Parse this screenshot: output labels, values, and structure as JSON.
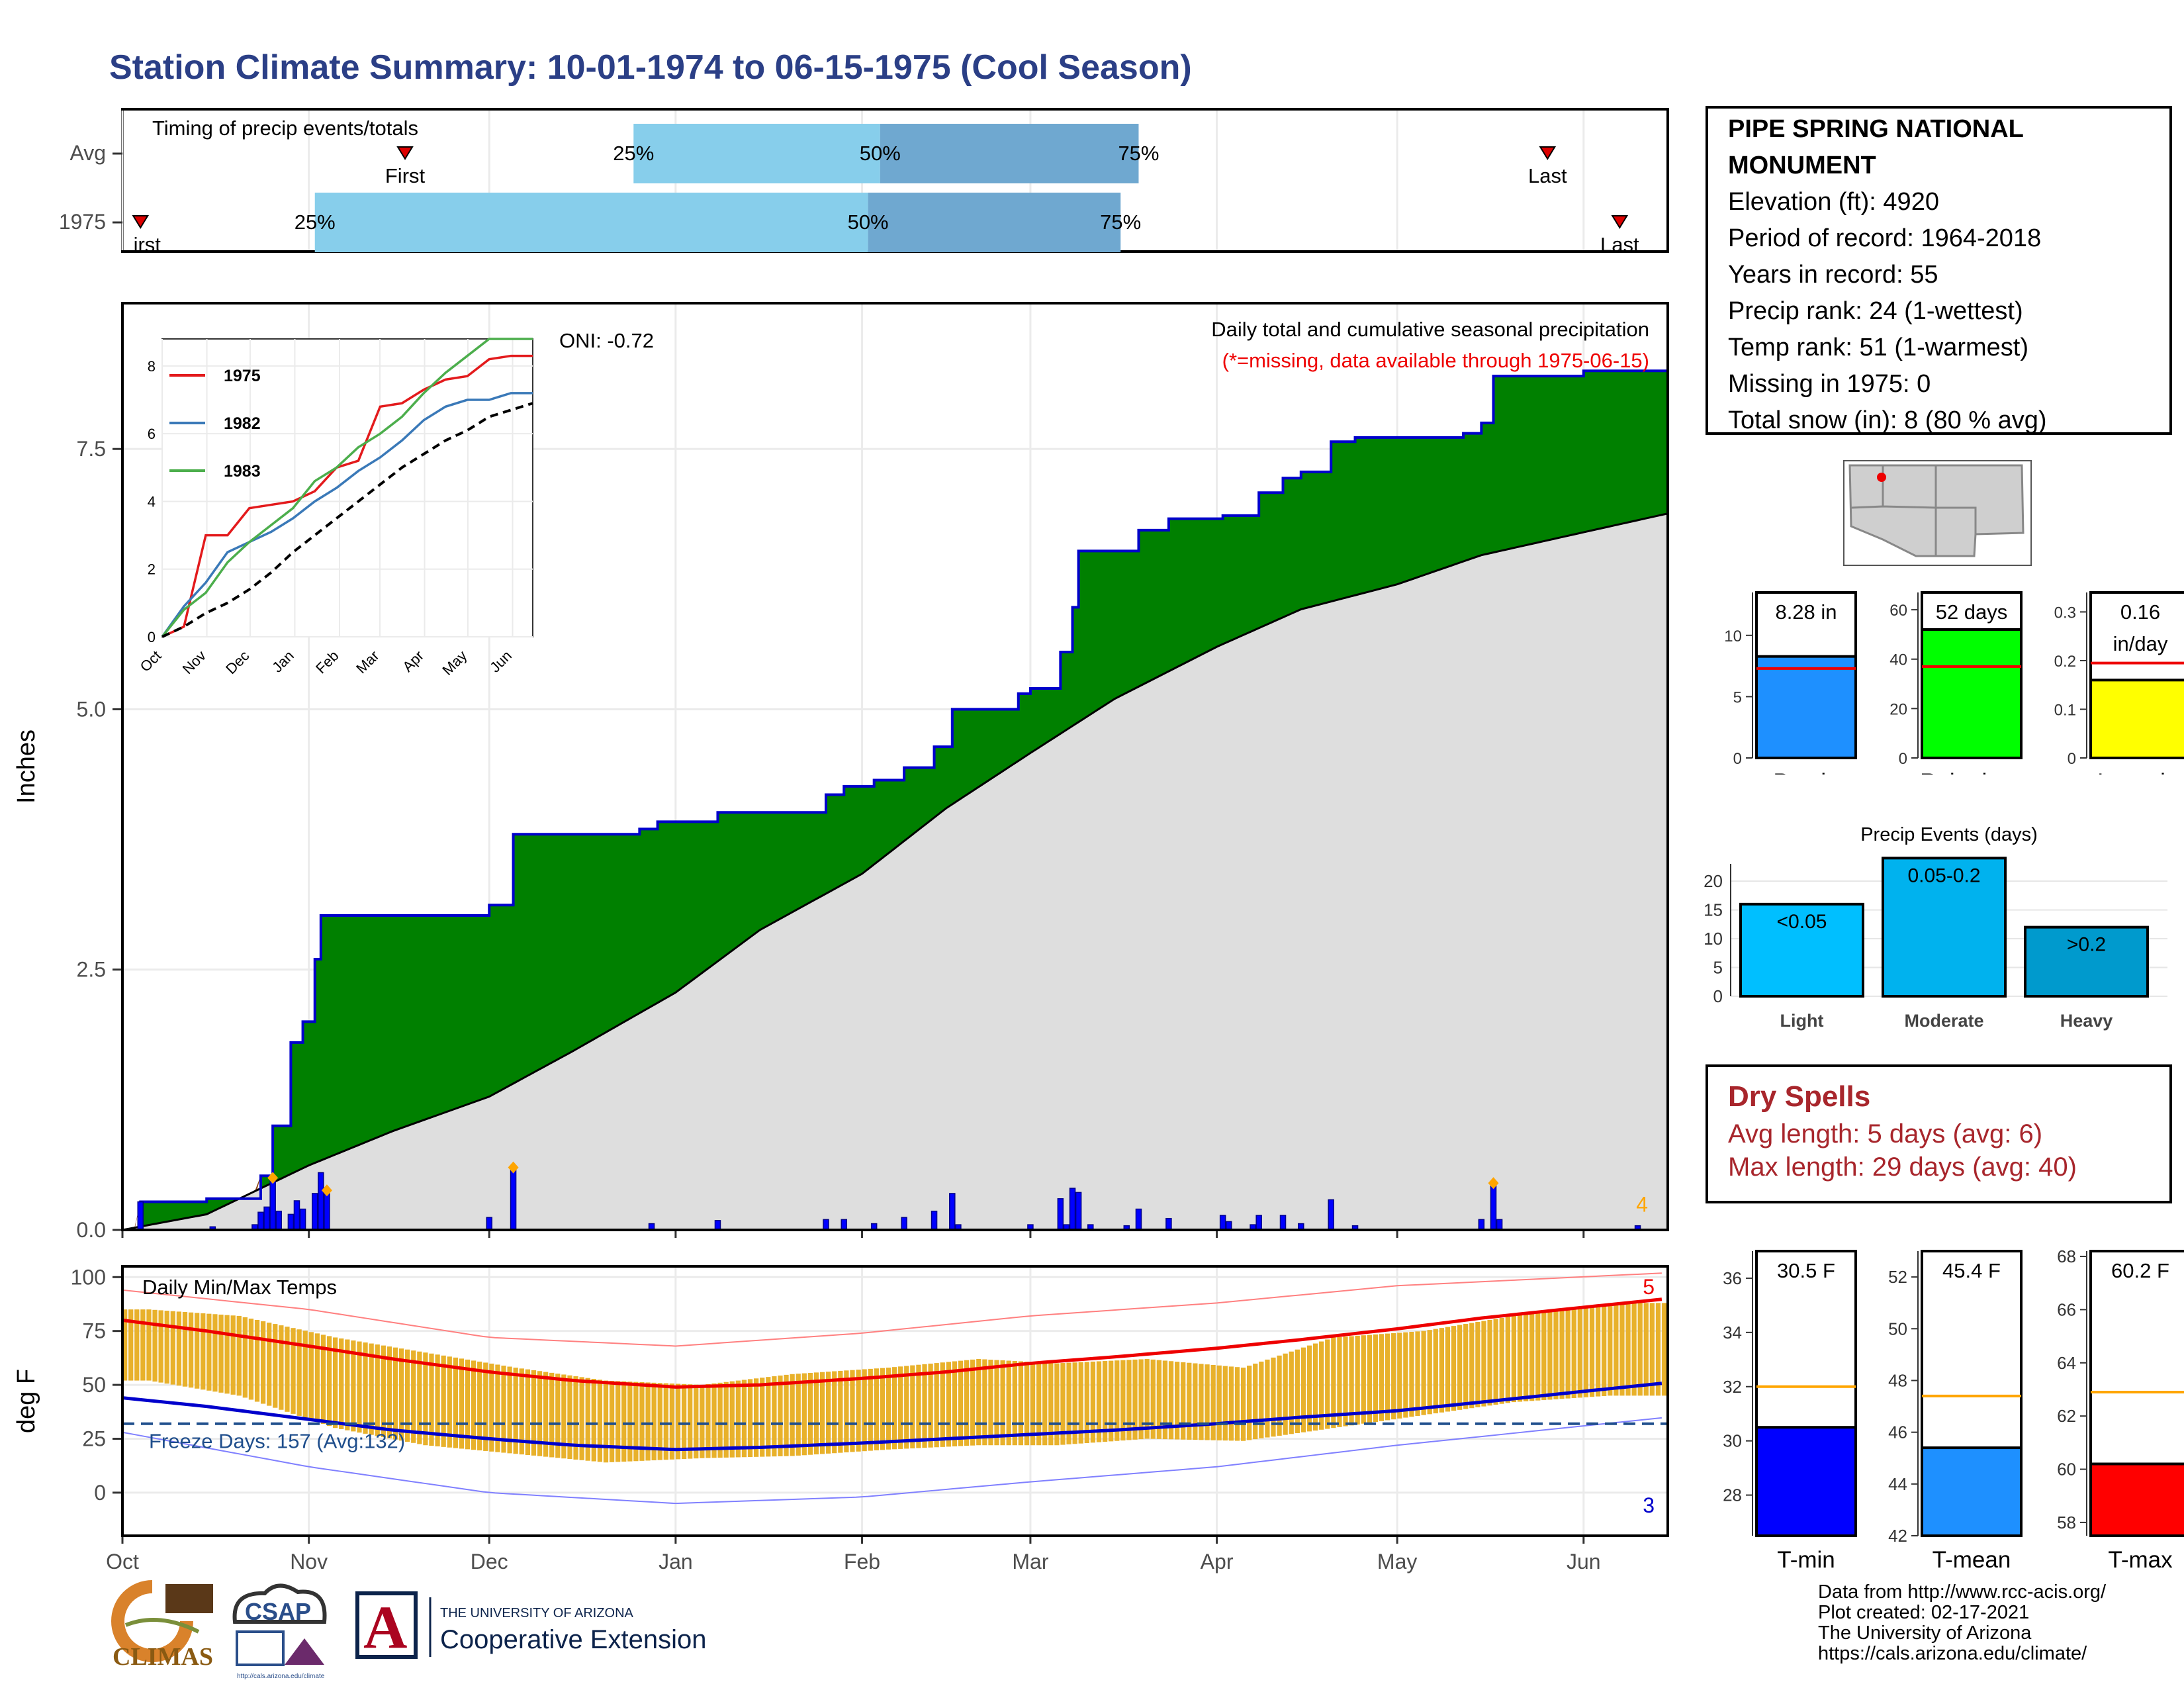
{
  "title": "Station Climate Summary: 10-01-1974 to 06-15-1975 (Cool Season)",
  "timing": {
    "title": "Timing of precip events/totals",
    "rows": [
      {
        "label": "Avg",
        "first_label": "First",
        "last_label": "Last",
        "first": "Nov 17",
        "last": "May 26",
        "p25": "Dec 25",
        "p50": "Feb 4",
        "p75": "Mar 19",
        "p25_label": "25%",
        "p50_label": "50%",
        "p75_label": "75%"
      },
      {
        "label": "1975",
        "first_label": "irst",
        "last_label": "Last",
        "first": "Oct 4",
        "last": "Jun 7",
        "p25": "Nov 2",
        "p50": "Feb 2",
        "p75": "Mar 16",
        "p25_label": "25%",
        "p50_label": "50%",
        "p75_label": "75%"
      }
    ],
    "colors": {
      "first_half": "#87ceeb",
      "second_half": "#6fa8d0",
      "marker": "#dd0000"
    }
  },
  "station": {
    "name_line1": "PIPE SPRING NATIONAL",
    "name_line2": "MONUMENT",
    "elevation": "Elevation (ft): 4920",
    "period": "Period of record: 1964-2018",
    "years": "Years in record: 55",
    "precip_rank": "Precip rank: 24 (1-wettest)",
    "temp_rank": "Temp rank: 51 (1-warmest)",
    "missing": "Missing in 1975: 0",
    "snow": "Total snow (in): 8 (80 % avg)"
  },
  "chart_data": [
    {
      "type": "area",
      "name": "cumulative_precip",
      "title": "Daily total and cumulative seasonal precipitation",
      "subtitle": "(*=missing, data available through 1975-06-15)",
      "ylabel": "Inches",
      "ylim": [
        0,
        8.9
      ],
      "yticks": [
        0.0,
        2.5,
        5.0,
        7.5
      ],
      "ytick_labels": [
        "0.0",
        "2.5",
        "5.0",
        "7.5"
      ],
      "oni": "ONI: -0.72",
      "corner_count": "4",
      "colors": {
        "observed_line": "#0000cc",
        "above_avg_fill": "#008000",
        "below_avg_fill": "#8b4513",
        "avg_fill": "#dedede"
      },
      "cumulative_1975": [
        [
          "1974-10-01",
          0.0
        ],
        [
          "1974-10-04",
          0.27
        ],
        [
          "1974-10-15",
          0.3
        ],
        [
          "1974-10-24",
          0.52
        ],
        [
          "1974-10-26",
          1.0
        ],
        [
          "1974-10-29",
          1.8
        ],
        [
          "1974-10-31",
          2.0
        ],
        [
          "1974-11-02",
          2.6
        ],
        [
          "1974-11-03",
          3.02
        ],
        [
          "1974-11-30",
          3.02
        ],
        [
          "1974-12-01",
          3.12
        ],
        [
          "1974-12-05",
          3.8
        ],
        [
          "1974-12-26",
          3.85
        ],
        [
          "1974-12-29",
          3.92
        ],
        [
          "1975-01-07",
          3.92
        ],
        [
          "1975-01-08",
          4.01
        ],
        [
          "1975-01-24",
          4.01
        ],
        [
          "1975-01-26",
          4.18
        ],
        [
          "1975-01-29",
          4.26
        ],
        [
          "1975-02-03",
          4.32
        ],
        [
          "1975-02-08",
          4.44
        ],
        [
          "1975-02-13",
          4.64
        ],
        [
          "1975-02-16",
          5.0
        ],
        [
          "1975-02-25",
          5.0
        ],
        [
          "1975-02-27",
          5.15
        ],
        [
          "1975-03-01",
          5.2
        ],
        [
          "1975-03-06",
          5.55
        ],
        [
          "1975-03-08",
          5.98
        ],
        [
          "1975-03-09",
          6.52
        ],
        [
          "1975-03-17",
          6.52
        ],
        [
          "1975-03-19",
          6.72
        ],
        [
          "1975-03-24",
          6.83
        ],
        [
          "1975-03-31",
          6.83
        ],
        [
          "1975-04-02",
          6.86
        ],
        [
          "1975-04-08",
          7.08
        ],
        [
          "1975-04-12",
          7.22
        ],
        [
          "1975-04-15",
          7.28
        ],
        [
          "1975-04-20",
          7.57
        ],
        [
          "1975-04-24",
          7.61
        ],
        [
          "1975-05-12",
          7.65
        ],
        [
          "1975-05-15",
          7.75
        ],
        [
          "1975-05-17",
          8.2
        ],
        [
          "1975-06-01",
          8.25
        ],
        [
          "1975-06-15",
          8.28
        ]
      ],
      "cumulative_avg": [
        [
          "1974-10-01",
          0.0
        ],
        [
          "1974-10-15",
          0.15
        ],
        [
          "1974-11-01",
          0.62
        ],
        [
          "1974-11-15",
          0.95
        ],
        [
          "1974-12-01",
          1.28
        ],
        [
          "1974-12-15",
          1.72
        ],
        [
          "1975-01-01",
          2.28
        ],
        [
          "1975-01-15",
          2.88
        ],
        [
          "1975-02-01",
          3.42
        ],
        [
          "1975-02-15",
          4.05
        ],
        [
          "1975-03-01",
          4.58
        ],
        [
          "1975-03-15",
          5.1
        ],
        [
          "1975-04-01",
          5.6
        ],
        [
          "1975-04-15",
          5.96
        ],
        [
          "1975-05-01",
          6.2
        ],
        [
          "1975-05-15",
          6.48
        ],
        [
          "1975-06-01",
          6.7
        ],
        [
          "1975-06-15",
          6.88
        ]
      ],
      "daily_bars": [
        [
          "1974-10-04",
          0.27
        ],
        [
          "1974-10-16",
          0.03
        ],
        [
          "1974-10-23",
          0.05
        ],
        [
          "1974-10-24",
          0.17
        ],
        [
          "1974-10-25",
          0.22
        ],
        [
          "1974-10-26",
          0.48
        ],
        [
          "1974-10-27",
          0.18
        ],
        [
          "1974-10-29",
          0.15
        ],
        [
          "1974-10-30",
          0.28
        ],
        [
          "1974-10-31",
          0.2
        ],
        [
          "1974-11-02",
          0.35
        ],
        [
          "1974-11-03",
          0.55
        ],
        [
          "1974-11-04",
          0.35
        ],
        [
          "1974-12-05",
          0.58
        ],
        [
          "1974-12-01",
          0.12
        ],
        [
          "1974-12-28",
          0.06
        ],
        [
          "1975-01-08",
          0.09
        ],
        [
          "1975-01-26",
          0.1
        ],
        [
          "1975-01-29",
          0.1
        ],
        [
          "1975-02-03",
          0.06
        ],
        [
          "1975-02-08",
          0.12
        ],
        [
          "1975-02-13",
          0.18
        ],
        [
          "1975-02-16",
          0.35
        ],
        [
          "1975-02-17",
          0.05
        ],
        [
          "1975-03-01",
          0.05
        ],
        [
          "1975-03-06",
          0.3
        ],
        [
          "1975-03-07",
          0.05
        ],
        [
          "1975-03-08",
          0.4
        ],
        [
          "1975-03-09",
          0.36
        ],
        [
          "1975-03-11",
          0.05
        ],
        [
          "1975-03-17",
          0.04
        ],
        [
          "1975-03-19",
          0.2
        ],
        [
          "1975-03-24",
          0.11
        ],
        [
          "1975-04-02",
          0.14
        ],
        [
          "1975-04-03",
          0.08
        ],
        [
          "1975-04-07",
          0.05
        ],
        [
          "1975-04-08",
          0.14
        ],
        [
          "1975-04-12",
          0.14
        ],
        [
          "1975-04-15",
          0.06
        ],
        [
          "1975-04-20",
          0.29
        ],
        [
          "1975-04-24",
          0.04
        ],
        [
          "1975-05-15",
          0.1
        ],
        [
          "1975-05-17",
          0.45
        ],
        [
          "1975-05-18",
          0.1
        ],
        [
          "1975-06-10",
          0.04
        ]
      ],
      "record_markers": [
        [
          "1974-10-26",
          0.5
        ],
        [
          "1974-11-04",
          0.38
        ],
        [
          "1974-12-05",
          0.6
        ],
        [
          "1975-05-17",
          0.45
        ]
      ],
      "inset": {
        "type": "line",
        "xticks": [
          "Oct",
          "Nov",
          "Dec",
          "Jan",
          "Feb",
          "Mar",
          "Apr",
          "May",
          "Jun"
        ],
        "yticks": [
          0,
          2,
          4,
          6,
          8
        ],
        "ylim": [
          0,
          8.8
        ],
        "series": [
          {
            "name": "1975",
            "color": "#e31a1c",
            "values": [
              0,
              0.3,
              3.0,
              3.0,
              3.8,
              3.9,
              4.0,
              4.3,
              5.0,
              5.2,
              6.8,
              6.9,
              7.3,
              7.6,
              7.7,
              8.2,
              8.3,
              8.3
            ]
          },
          {
            "name": "1982",
            "color": "#3a79b8",
            "values": [
              0,
              0.9,
              1.6,
              2.5,
              2.8,
              3.1,
              3.5,
              4.0,
              4.4,
              4.9,
              5.3,
              5.8,
              6.4,
              6.8,
              7.0,
              7.0,
              7.2,
              7.2
            ]
          },
          {
            "name": "1983",
            "color": "#4cae4c",
            "values": [
              0,
              0.8,
              1.3,
              2.2,
              2.8,
              3.3,
              3.8,
              4.6,
              5.0,
              5.6,
              6.0,
              6.5,
              7.2,
              7.8,
              8.3,
              8.8,
              8.8,
              8.8
            ]
          },
          {
            "name": "avg",
            "color": "#000000",
            "dashed": true,
            "values": [
              0,
              0.3,
              0.7,
              1.0,
              1.4,
              1.9,
              2.5,
              3.0,
              3.5,
              4.0,
              4.5,
              5.0,
              5.4,
              5.8,
              6.1,
              6.5,
              6.7,
              6.9
            ]
          }
        ]
      }
    },
    {
      "type": "bar",
      "name": "daily_temps",
      "title": "Daily Min/Max Temps",
      "ylabel": "deg F",
      "ylim": [
        -20,
        105
      ],
      "yticks": [
        0,
        25,
        50,
        75,
        100
      ],
      "x_month_labels": [
        "Oct",
        "Nov",
        "Dec",
        "Jan",
        "Feb",
        "Mar",
        "Apr",
        "May",
        "Jun"
      ],
      "freeze_label": "Freeze Days: 157 (Avg:132)",
      "freeze_line": 32,
      "count_top": "5",
      "count_bottom": "3",
      "avg_max_series": [
        [
          "1974-10-01",
          80
        ],
        [
          "1974-10-15",
          75
        ],
        [
          "1974-11-01",
          68
        ],
        [
          "1974-11-15",
          62
        ],
        [
          "1974-12-01",
          56
        ],
        [
          "1974-12-15",
          52
        ],
        [
          "1975-01-01",
          49
        ],
        [
          "1975-01-15",
          50
        ],
        [
          "1975-02-01",
          53
        ],
        [
          "1975-02-15",
          56
        ],
        [
          "1975-03-01",
          60
        ],
        [
          "1975-03-15",
          63
        ],
        [
          "1975-04-01",
          67
        ],
        [
          "1975-04-15",
          71
        ],
        [
          "1975-05-01",
          76
        ],
        [
          "1975-05-15",
          81
        ],
        [
          "1975-06-01",
          86
        ],
        [
          "1975-06-15",
          90
        ]
      ],
      "avg_min_series": [
        [
          "1974-10-01",
          44
        ],
        [
          "1974-10-15",
          40
        ],
        [
          "1974-11-01",
          34
        ],
        [
          "1974-11-15",
          29
        ],
        [
          "1974-12-01",
          25
        ],
        [
          "1974-12-15",
          22
        ],
        [
          "1975-01-01",
          20
        ],
        [
          "1975-01-15",
          21
        ],
        [
          "1975-02-01",
          23
        ],
        [
          "1975-02-15",
          25
        ],
        [
          "1975-03-01",
          27
        ],
        [
          "1975-03-15",
          29
        ],
        [
          "1975-04-01",
          32
        ],
        [
          "1975-04-15",
          35
        ],
        [
          "1975-05-01",
          38
        ],
        [
          "1975-05-15",
          42
        ],
        [
          "1975-06-01",
          47
        ],
        [
          "1975-06-15",
          51
        ]
      ],
      "record_high_series": [
        [
          "1974-10-01",
          94
        ],
        [
          "1974-11-01",
          85
        ],
        [
          "1974-12-01",
          72
        ],
        [
          "1975-01-01",
          68
        ],
        [
          "1975-02-01",
          74
        ],
        [
          "1975-03-01",
          82
        ],
        [
          "1975-04-01",
          88
        ],
        [
          "1975-05-01",
          96
        ],
        [
          "1975-06-15",
          102
        ]
      ],
      "record_low_series": [
        [
          "1974-10-01",
          28
        ],
        [
          "1974-11-01",
          12
        ],
        [
          "1974-12-01",
          0
        ],
        [
          "1975-01-01",
          -5
        ],
        [
          "1975-02-01",
          -2
        ],
        [
          "1975-03-01",
          5
        ],
        [
          "1975-04-01",
          12
        ],
        [
          "1975-05-01",
          22
        ],
        [
          "1975-06-15",
          35
        ]
      ],
      "daily_ranges_estimated": [
        [
          "1974-10-05",
          52,
          85
        ],
        [
          "1974-10-20",
          45,
          82
        ],
        [
          "1974-11-05",
          30,
          72
        ],
        [
          "1974-11-20",
          22,
          65
        ],
        [
          "1974-12-05",
          18,
          58
        ],
        [
          "1974-12-20",
          14,
          52
        ],
        [
          "1975-01-05",
          16,
          50
        ],
        [
          "1975-01-20",
          17,
          55
        ],
        [
          "1975-02-05",
          20,
          58
        ],
        [
          "1975-02-20",
          22,
          62
        ],
        [
          "1975-03-05",
          22,
          60
        ],
        [
          "1975-03-20",
          25,
          62
        ],
        [
          "1975-04-05",
          24,
          58
        ],
        [
          "1975-04-20",
          30,
          72
        ],
        [
          "1975-05-05",
          36,
          75
        ],
        [
          "1975-05-20",
          42,
          82
        ],
        [
          "1975-06-05",
          45,
          88
        ]
      ]
    },
    {
      "type": "bar",
      "name": "summary_precip",
      "categories": [
        "Precip",
        "Rain days",
        "Intensity"
      ],
      "values": [
        8.28,
        52,
        0.16
      ],
      "value_labels": [
        "8.28 in",
        "52 days",
        "0.16 in/day"
      ],
      "averages": [
        7.3,
        37,
        0.195
      ],
      "ylims": [
        [
          0,
          13.5
        ],
        [
          0,
          67
        ],
        [
          0,
          0.34
        ]
      ],
      "yticks": [
        [
          0,
          5,
          10
        ],
        [
          0,
          20,
          40,
          60
        ],
        [
          0.0,
          0.1,
          0.2,
          0.3
        ]
      ],
      "colors": [
        "#1e90ff",
        "#00ff00",
        "#ffff00"
      ]
    },
    {
      "type": "bar",
      "name": "precip_events",
      "title": "Precip Events (days)",
      "categories": [
        "Light",
        "Moderate",
        "Heavy"
      ],
      "values": [
        16,
        24,
        12
      ],
      "value_labels": [
        "<0.05",
        "0.05-0.2",
        ">0.2"
      ],
      "ylim": [
        0,
        23
      ],
      "yticks": [
        0,
        5,
        10,
        15,
        20
      ],
      "colors": [
        "#00bfff",
        "#00b2ee",
        "#009acd"
      ]
    },
    {
      "type": "bar",
      "name": "summary_temps",
      "categories": [
        "T-min",
        "T-mean",
        "T-max"
      ],
      "values": [
        30.5,
        45.4,
        60.2
      ],
      "value_labels": [
        "30.5 F",
        "45.4 F",
        "60.2 F"
      ],
      "averages": [
        32.0,
        47.4,
        62.9
      ],
      "ylims": [
        [
          26.5,
          37
        ],
        [
          42,
          53
        ],
        [
          57.5,
          68.2
        ]
      ],
      "yticks": [
        [
          28,
          30,
          32,
          34,
          36
        ],
        [
          42,
          44,
          46,
          48,
          50,
          52
        ],
        [
          58,
          60,
          62,
          64,
          66,
          68
        ]
      ],
      "colors": [
        "#0000ff",
        "#1e90ff",
        "#ff0000"
      ]
    }
  ],
  "dry_spells": {
    "title": "Dry Spells",
    "avg_line": "Avg length: 5 days (avg: 6)",
    "max_line": "Max length: 29 days (avg: 40)"
  },
  "footer": {
    "line1": "Data from http://www.rcc-acis.org/",
    "line2": "Plot created: 02-17-2021",
    "line3": "The University of Arizona",
    "line4": "https://cals.arizona.edu/climate/"
  },
  "logos": {
    "climas": "CLIMAS",
    "csap": "CSAP",
    "csap_url": "http://cals.arizona.edu/climate",
    "ua_small": "THE UNIVERSITY OF ARIZONA",
    "ua_big": "Cooperative Extension",
    "ua_letter": "A"
  }
}
